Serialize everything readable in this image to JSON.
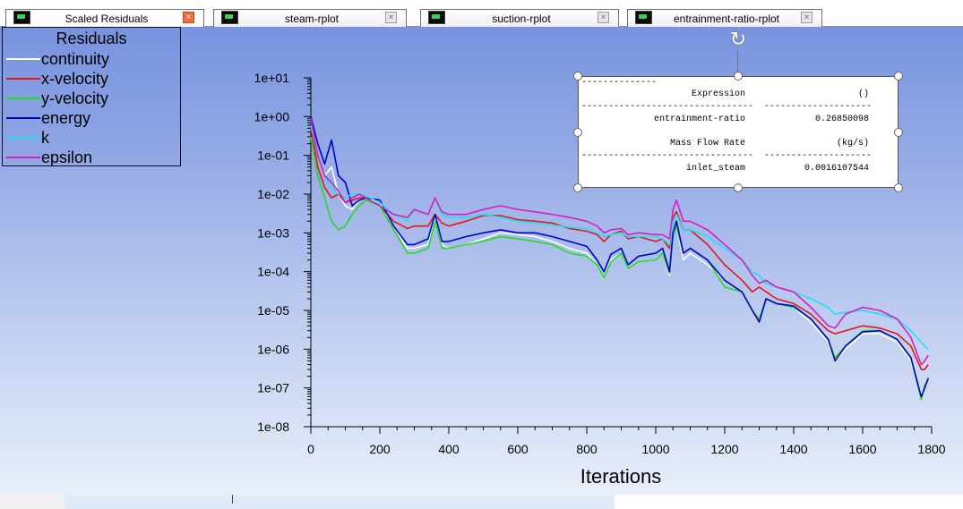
{
  "tabs": [
    {
      "label": "Scaled Residuals",
      "active": true
    },
    {
      "label": "steam-rplot",
      "active": false
    },
    {
      "label": "suction-rplot",
      "active": false
    },
    {
      "label": "entrainment-ratio-rplot",
      "active": false
    }
  ],
  "tab_close_glyph": "×",
  "legend": {
    "title": "Residuals",
    "items": [
      {
        "label": "continuity",
        "color": "#ffffff"
      },
      {
        "label": "x-velocity",
        "color": "#e01818"
      },
      {
        "label": "y-velocity",
        "color": "#22dd22"
      },
      {
        "label": "energy",
        "color": "#0000cc"
      },
      {
        "label": "k",
        "color": "#22e0f0"
      },
      {
        "label": "epsilon",
        "color": "#d81fc0"
      }
    ]
  },
  "report": {
    "rule_short": "--------------",
    "rule_long": "--------------------------------  --------------------",
    "header1": {
      "name": "Expression",
      "unit": "()"
    },
    "row1": {
      "name": "entrainment-ratio",
      "value": "0.26850098"
    },
    "header2": {
      "name": "Mass Flow Rate",
      "unit": "(kg/s)"
    },
    "row2": {
      "name": "inlet_steam",
      "value": "0.0016107544"
    }
  },
  "rotate_glyph": "↻",
  "chart_data": {
    "type": "line",
    "title": "",
    "xlabel": "Iterations",
    "ylabel": "",
    "xlim": [
      0,
      1800
    ],
    "ylim": [
      1e-08,
      10
    ],
    "yscale": "log",
    "xticks": [
      0,
      200,
      400,
      600,
      800,
      1000,
      1200,
      1400,
      1600,
      1800
    ],
    "yticks": [
      {
        "value": 10,
        "label": "1e+01"
      },
      {
        "value": 1,
        "label": "1e+00"
      },
      {
        "value": 0.1,
        "label": "1e-01"
      },
      {
        "value": 0.01,
        "label": "1e-02"
      },
      {
        "value": 0.001,
        "label": "1e-03"
      },
      {
        "value": 0.0001,
        "label": "1e-04"
      },
      {
        "value": 1e-05,
        "label": "1e-05"
      },
      {
        "value": 1e-06,
        "label": "1e-06"
      },
      {
        "value": 1e-07,
        "label": "1e-07"
      },
      {
        "value": 1e-08,
        "label": "1e-08"
      }
    ],
    "grid": false,
    "legend_position": "top-left",
    "series": [
      {
        "name": "continuity",
        "color": "#ffffff",
        "x": [
          0,
          20,
          40,
          60,
          80,
          100,
          120,
          140,
          160,
          200,
          240,
          280,
          300,
          340,
          360,
          380,
          400,
          450,
          500,
          550,
          600,
          650,
          700,
          750,
          800,
          830,
          850,
          870,
          900,
          920,
          950,
          1000,
          1020,
          1040,
          1050,
          1060,
          1080,
          1100,
          1150,
          1200,
          1250,
          1280,
          1300,
          1320,
          1350,
          1400,
          1450,
          1500,
          1520,
          1550,
          1600,
          1650,
          1700,
          1740,
          1770,
          1780,
          1790
        ],
        "y": [
          0.9,
          0.1,
          0.03,
          0.05,
          0.01,
          0.005,
          0.004,
          0.007,
          0.008,
          0.006,
          0.0015,
          0.0004,
          0.0004,
          0.0005,
          0.0025,
          0.0005,
          0.0004,
          0.0005,
          0.0007,
          0.001,
          0.0009,
          0.0008,
          0.0006,
          0.0004,
          0.0003,
          0.00015,
          7e-05,
          0.0002,
          0.0003,
          0.00012,
          0.00018,
          0.0002,
          0.0003,
          8e-05,
          0.0008,
          0.0015,
          0.0002,
          0.0003,
          0.00015,
          6e-05,
          3e-05,
          1e-05,
          5e-06,
          2e-05,
          1.5e-05,
          1.2e-05,
          5e-06,
          1.5e-06,
          5e-07,
          1e-06,
          2.5e-06,
          2.5e-06,
          1.5e-06,
          5e-07,
          7e-08,
          1e-07,
          1.5e-07
        ]
      },
      {
        "name": "x-velocity",
        "color": "#e01818",
        "x": [
          0,
          20,
          40,
          60,
          80,
          100,
          120,
          140,
          160,
          200,
          240,
          280,
          300,
          340,
          360,
          380,
          400,
          450,
          500,
          550,
          600,
          650,
          700,
          750,
          800,
          830,
          850,
          870,
          900,
          920,
          950,
          1000,
          1020,
          1040,
          1050,
          1060,
          1080,
          1100,
          1150,
          1200,
          1250,
          1280,
          1300,
          1320,
          1350,
          1400,
          1450,
          1500,
          1520,
          1550,
          1600,
          1650,
          1700,
          1740,
          1770,
          1780,
          1790
        ],
        "y": [
          0.5,
          0.05,
          0.015,
          0.008,
          0.01,
          0.006,
          0.007,
          0.008,
          0.008,
          0.005,
          0.002,
          0.0013,
          0.0015,
          0.0015,
          0.003,
          0.0018,
          0.0015,
          0.002,
          0.0028,
          0.0028,
          0.0022,
          0.002,
          0.0018,
          0.0013,
          0.0011,
          0.0009,
          0.0006,
          0.0009,
          0.0011,
          0.0007,
          0.0008,
          0.0006,
          0.0007,
          0.0004,
          0.0025,
          0.0035,
          0.0012,
          0.0012,
          0.0005,
          0.00015,
          6e-05,
          3e-05,
          4e-05,
          3e-05,
          2e-05,
          1.5e-05,
          8e-06,
          3e-06,
          2.5e-06,
          3e-06,
          4e-06,
          3.5e-06,
          2.5e-06,
          1.2e-06,
          3e-07,
          3e-07,
          4e-07
        ]
      },
      {
        "name": "y-velocity",
        "color": "#22dd22",
        "x": [
          0,
          20,
          40,
          60,
          80,
          100,
          120,
          140,
          160,
          200,
          240,
          280,
          300,
          340,
          360,
          380,
          400,
          450,
          500,
          550,
          600,
          650,
          700,
          750,
          800,
          830,
          850,
          870,
          900,
          920,
          950,
          1000,
          1020,
          1040,
          1050,
          1060,
          1080,
          1100,
          1150,
          1200,
          1250,
          1280,
          1300,
          1320,
          1350,
          1400,
          1450,
          1500,
          1520,
          1550,
          1600,
          1650,
          1700,
          1740,
          1770,
          1780,
          1790
        ],
        "y": [
          0.3,
          0.03,
          0.008,
          0.002,
          0.0012,
          0.0015,
          0.003,
          0.005,
          0.007,
          0.005,
          0.0012,
          0.0003,
          0.0003,
          0.0004,
          0.002,
          0.0004,
          0.0004,
          0.0005,
          0.0006,
          0.0008,
          0.0007,
          0.0006,
          0.0005,
          0.0003,
          0.00025,
          0.00015,
          7e-05,
          0.00018,
          0.0003,
          0.00012,
          0.00018,
          0.0002,
          0.0003,
          9e-05,
          0.0008,
          0.0015,
          0.0003,
          0.0004,
          0.0002,
          4e-05,
          3e-05,
          1e-05,
          6e-06,
          2e-05,
          1.5e-05,
          1.2e-05,
          6e-06,
          1.8e-06,
          6e-07,
          1.2e-06,
          3e-06,
          3e-06,
          1.8e-06,
          6e-07,
          5e-08,
          1.2e-07,
          1.5e-07
        ]
      },
      {
        "name": "energy",
        "color": "#0000cc",
        "x": [
          0,
          20,
          40,
          60,
          80,
          100,
          120,
          140,
          160,
          200,
          240,
          280,
          300,
          340,
          360,
          380,
          400,
          450,
          500,
          550,
          600,
          650,
          700,
          750,
          800,
          830,
          850,
          870,
          900,
          920,
          950,
          1000,
          1020,
          1040,
          1050,
          1060,
          1080,
          1100,
          1150,
          1200,
          1250,
          1280,
          1300,
          1320,
          1350,
          1400,
          1450,
          1500,
          1520,
          1550,
          1600,
          1650,
          1700,
          1740,
          1770,
          1780,
          1790
        ],
        "y": [
          1.0,
          0.2,
          0.06,
          0.25,
          0.03,
          0.02,
          0.005,
          0.007,
          0.008,
          0.007,
          0.0015,
          0.0005,
          0.0005,
          0.0007,
          0.003,
          0.0006,
          0.0006,
          0.0008,
          0.001,
          0.0012,
          0.001,
          0.001,
          0.0008,
          0.0006,
          0.00045,
          0.0002,
          0.0001,
          0.00028,
          0.0004,
          0.00015,
          0.00025,
          0.0003,
          0.0004,
          0.0001,
          0.001,
          0.002,
          0.0003,
          0.0004,
          0.0002,
          6e-05,
          3e-05,
          1e-05,
          5e-06,
          2e-05,
          1.5e-05,
          1.3e-05,
          6e-06,
          1.8e-06,
          5e-07,
          1.2e-06,
          2.8e-06,
          3e-06,
          1.8e-06,
          6e-07,
          6e-08,
          1e-07,
          1.8e-07
        ]
      },
      {
        "name": "k",
        "color": "#22e0f0",
        "x": [
          0,
          20,
          40,
          60,
          80,
          100,
          120,
          140,
          160,
          200,
          240,
          280,
          300,
          340,
          360,
          380,
          400,
          450,
          500,
          550,
          600,
          650,
          700,
          750,
          800,
          830,
          850,
          870,
          900,
          920,
          950,
          1000,
          1020,
          1040,
          1050,
          1060,
          1080,
          1100,
          1150,
          1200,
          1250,
          1280,
          1300,
          1320,
          1350,
          1400,
          1450,
          1500,
          1520,
          1550,
          1600,
          1650,
          1700,
          1740,
          1770,
          1780,
          1790
        ],
        "y": [
          0.6,
          0.1,
          0.03,
          0.015,
          0.01,
          0.008,
          0.01,
          0.01,
          0.009,
          0.006,
          0.003,
          0.002,
          0.004,
          0.003,
          0.008,
          0.003,
          0.0025,
          0.0025,
          0.003,
          0.0025,
          0.002,
          0.0018,
          0.0016,
          0.0014,
          0.0013,
          0.001,
          0.0008,
          0.0009,
          0.001,
          0.0008,
          0.0008,
          0.0008,
          0.0007,
          0.0005,
          0.002,
          0.003,
          0.0012,
          0.0012,
          0.0008,
          0.0004,
          0.0002,
          0.0001,
          8e-05,
          5e-05,
          4e-05,
          3e-05,
          2e-05,
          1.2e-05,
          8e-06,
          9e-06,
          1e-05,
          8e-06,
          6e-06,
          3e-06,
          1.5e-06,
          1.2e-06,
          1e-06
        ]
      },
      {
        "name": "epsilon",
        "color": "#d81fc0",
        "x": [
          0,
          20,
          40,
          60,
          80,
          100,
          120,
          140,
          160,
          200,
          240,
          280,
          300,
          340,
          360,
          380,
          400,
          450,
          500,
          550,
          600,
          650,
          700,
          750,
          800,
          830,
          850,
          870,
          900,
          920,
          950,
          1000,
          1020,
          1040,
          1050,
          1060,
          1080,
          1100,
          1150,
          1200,
          1250,
          1280,
          1300,
          1320,
          1350,
          1400,
          1450,
          1500,
          1520,
          1550,
          1600,
          1650,
          1700,
          1740,
          1770,
          1780,
          1790
        ],
        "y": [
          0.9,
          0.1,
          0.03,
          0.02,
          0.012,
          0.006,
          0.008,
          0.01,
          0.008,
          0.005,
          0.003,
          0.0025,
          0.004,
          0.003,
          0.008,
          0.0035,
          0.003,
          0.003,
          0.004,
          0.005,
          0.004,
          0.0035,
          0.003,
          0.0025,
          0.002,
          0.0015,
          0.001,
          0.0012,
          0.0013,
          0.0009,
          0.001,
          0.0009,
          0.0009,
          0.0007,
          0.004,
          0.007,
          0.002,
          0.002,
          0.0012,
          0.0005,
          0.0002,
          8e-05,
          5e-05,
          6e-05,
          4e-05,
          3e-05,
          1.2e-05,
          4e-06,
          3.5e-06,
          8e-06,
          1.2e-05,
          1e-05,
          6e-06,
          2e-06,
          4e-07,
          5e-07,
          7e-07
        ]
      }
    ]
  }
}
